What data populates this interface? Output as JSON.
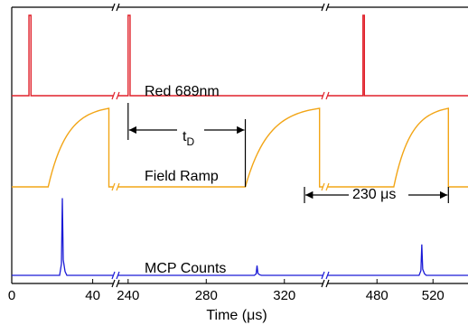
{
  "chart_data": {
    "type": "line",
    "xlabel": "Time (μs)",
    "x_segments": [
      {
        "xlim": [
          0,
          50
        ],
        "ticks": [
          0,
          40
        ]
      },
      {
        "xlim": [
          235,
          340
        ],
        "ticks": [
          240,
          280,
          320
        ]
      },
      {
        "xlim": [
          445,
          545
        ],
        "ticks": [
          480,
          520
        ]
      }
    ],
    "axis_break_marks": [
      "//",
      "//"
    ],
    "colors": {
      "red": "#e0202a",
      "orange": "#f2a516",
      "blue": "#1a1ad6",
      "axis": "#000000"
    },
    "series": [
      {
        "name": "Red 689nm",
        "color": "#e0202a",
        "pulses": [
          {
            "segment": 0,
            "t_start": 8.5,
            "t_end": 9.5
          },
          {
            "segment": 1,
            "t_start": 240,
            "t_end": 241
          },
          {
            "segment": 2,
            "t_start": 470,
            "t_end": 471
          }
        ]
      },
      {
        "name": "Field Ramp",
        "color": "#f2a516",
        "ramps": [
          {
            "segment": 0,
            "t_rise": 18,
            "t_fall": 48
          },
          {
            "segment": 1,
            "t_rise": 300,
            "t_fall": 338
          },
          {
            "segment": 2,
            "t_rise": 492,
            "t_fall": 531
          }
        ]
      },
      {
        "name": "MCP Counts",
        "color": "#1a1ad6",
        "peaks": [
          {
            "segment": 0,
            "t": 25,
            "height": 0.95
          },
          {
            "segment": 1,
            "t": 306,
            "height": 0.12
          },
          {
            "segment": 2,
            "t": 512,
            "height": 0.38
          }
        ]
      }
    ],
    "annotations": {
      "delay_label": "t",
      "delay_subscript": "D",
      "delay_from": {
        "segment": 1,
        "t": 240
      },
      "delay_to": {
        "segment": 1,
        "t": 300
      },
      "period_label": "230 μs",
      "period_from": {
        "segment": 2,
        "t": 450
      },
      "period_to": {
        "segment": 2,
        "t": 531
      }
    }
  }
}
